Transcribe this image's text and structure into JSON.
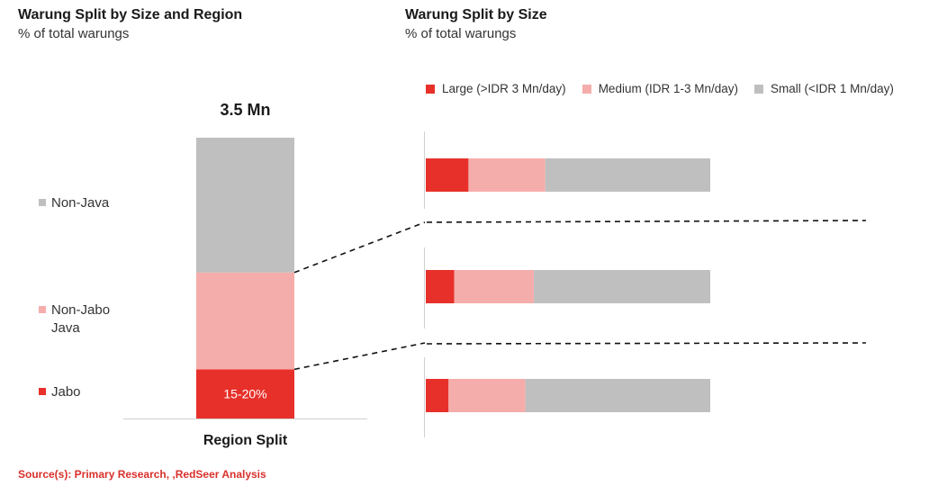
{
  "left_panel": {
    "title": "Warung Split by Size and Region",
    "subtitle": "% of total warungs"
  },
  "right_panel": {
    "title": "Warung Split by Size",
    "subtitle": "% of total warungs"
  },
  "source": "Source(s): Primary Research, ,RedSeer Analysis",
  "chart_data": [
    {
      "type": "bar",
      "stacked": true,
      "title": "",
      "total_label": "3.5 Mn",
      "xlabel": "Region Split",
      "categories": [
        "Region Split"
      ],
      "series": [
        {
          "name": "Jabo",
          "values": [
            17.5
          ],
          "color": "#e8302a",
          "data_label": "15-20%"
        },
        {
          "name": "Non-Jabo Java",
          "values": [
            34.5
          ],
          "color": "#f5adab",
          "data_label": ""
        },
        {
          "name": "Non-Java",
          "values": [
            48
          ],
          "color": "#bfbfbf",
          "data_label": ""
        }
      ],
      "labels": [
        {
          "series": "Non-Java",
          "text": [
            "Non-Java"
          ]
        },
        {
          "series": "Non-Jabo Java",
          "text": [
            "Non-Jabo",
            "Java"
          ]
        },
        {
          "series": "Jabo",
          "text": [
            "Jabo"
          ]
        }
      ],
      "ylim": [
        0,
        100
      ]
    },
    {
      "type": "bar",
      "orientation": "horizontal",
      "stacked": true,
      "title": "",
      "categories": [
        "Non-Java",
        "Non-Jabo Java",
        "Jabo"
      ],
      "series": [
        {
          "name": "Large (>IDR 3 Mn/day)",
          "values": [
            15,
            10,
            8
          ],
          "color": "#e8302a"
        },
        {
          "name": "Medium (IDR 1-3 Mn/day)",
          "values": [
            27,
            28,
            27
          ],
          "color": "#f5adab"
        },
        {
          "name": "Small (<IDR 1 Mn/day)",
          "values": [
            58,
            62,
            65
          ],
          "color": "#bfbfbf"
        }
      ],
      "legend_position": "top",
      "xlim": [
        0,
        100
      ]
    }
  ]
}
